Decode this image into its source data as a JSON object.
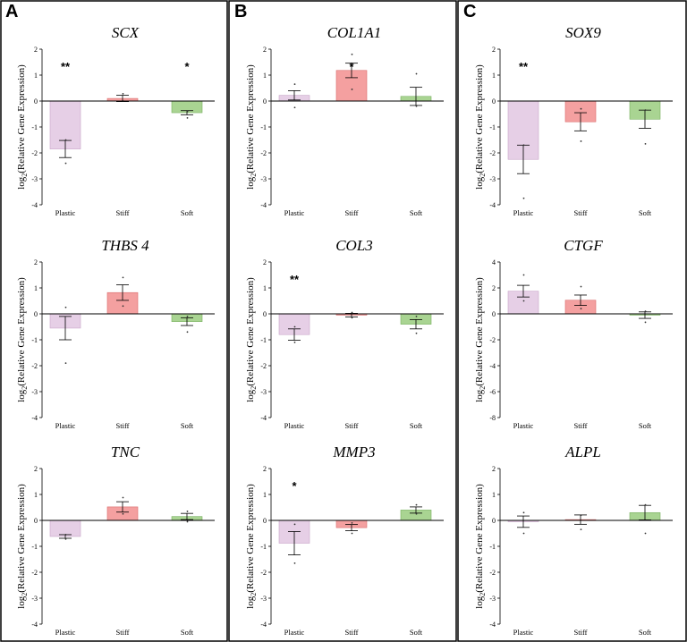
{
  "figure": {
    "panels": [
      {
        "letter": "A"
      },
      {
        "letter": "B"
      },
      {
        "letter": "C"
      }
    ],
    "colors": {
      "Plastic": "#e6cfe6",
      "Stiff": "#f4a0a0",
      "Soft": "#a9d492",
      "PlasticEdge": "#c9a6c9",
      "StiffEdge": "#d96a6a",
      "SoftEdge": "#78b060"
    }
  },
  "chart_data": [
    {
      "type": "bar",
      "panel": "A",
      "title": "SCX",
      "ylabel_base": "log",
      "ylabel_sub": "2",
      "ylabel_rest": "(Relative Gene Expression)",
      "categories": [
        "Plastic",
        "Stiff",
        "Soft"
      ],
      "values": [
        -1.85,
        0.1,
        -0.45
      ],
      "errors": [
        0.33,
        0.12,
        0.08
      ],
      "points": [
        [
          -1.5,
          -2.4
        ],
        [
          0.28,
          0.0
        ],
        [
          -0.4,
          -0.65
        ]
      ],
      "significance": [
        "**",
        "",
        "*"
      ],
      "ylim": [
        -4,
        2
      ],
      "yticks": [
        -4,
        -3,
        -2,
        -1,
        0,
        1,
        2
      ]
    },
    {
      "type": "bar",
      "panel": "A",
      "title": "THBS 4",
      "ylabel_base": "log",
      "ylabel_sub": "2",
      "ylabel_rest": "(Relative Gene Expression)",
      "categories": [
        "Plastic",
        "Stiff",
        "Soft"
      ],
      "values": [
        -0.55,
        0.82,
        -0.3
      ],
      "errors": [
        0.45,
        0.3,
        0.15
      ],
      "points": [
        [
          0.25,
          -1.9
        ],
        [
          1.4,
          0.3
        ],
        [
          -0.1,
          -0.7
        ]
      ],
      "significance": [
        "",
        "",
        ""
      ],
      "ylim": [
        -4,
        2
      ],
      "yticks": [
        -4,
        -3,
        -2,
        -1,
        0,
        1,
        2
      ]
    },
    {
      "type": "bar",
      "panel": "A",
      "title": "TNC",
      "ylabel_base": "log",
      "ylabel_sub": "2",
      "ylabel_rest": "(Relative Gene Expression)",
      "categories": [
        "Plastic",
        "Stiff",
        "Soft"
      ],
      "values": [
        -0.62,
        0.52,
        0.15
      ],
      "errors": [
        0.07,
        0.2,
        0.12
      ],
      "points": [
        [
          -0.55,
          -0.72
        ],
        [
          0.88,
          0.25
        ],
        [
          0.35,
          -0.05
        ]
      ],
      "significance": [
        "",
        "",
        ""
      ],
      "ylim": [
        -4,
        2
      ],
      "yticks": [
        -4,
        -3,
        -2,
        -1,
        0,
        1,
        2
      ]
    },
    {
      "type": "bar",
      "panel": "B",
      "title": "COL1A1",
      "ylabel_base": "log",
      "ylabel_sub": "2",
      "ylabel_rest": "(Relative Gene Expression)",
      "categories": [
        "Plastic",
        "Stiff",
        "Soft"
      ],
      "values": [
        0.22,
        1.18,
        0.18
      ],
      "errors": [
        0.18,
        0.28,
        0.35
      ],
      "points": [
        [
          0.65,
          -0.25
        ],
        [
          1.8,
          0.45
        ],
        [
          1.05,
          -0.2
        ]
      ],
      "significance": [
        "",
        "*",
        ""
      ],
      "ylim": [
        -4,
        2
      ],
      "yticks": [
        -4,
        -3,
        -2,
        -1,
        0,
        1,
        2
      ]
    },
    {
      "type": "bar",
      "panel": "B",
      "title": "COL3",
      "ylabel_base": "log",
      "ylabel_sub": "2",
      "ylabel_rest": "(Relative Gene Expression)",
      "categories": [
        "Plastic",
        "Stiff",
        "Soft"
      ],
      "values": [
        -0.8,
        -0.05,
        -0.4
      ],
      "errors": [
        0.22,
        0.07,
        0.18
      ],
      "points": [
        [
          -0.5,
          -1.1
        ],
        [
          0.05,
          -0.15
        ],
        [
          -0.1,
          -0.75
        ]
      ],
      "significance": [
        "**",
        "",
        ""
      ],
      "ylim": [
        -4,
        2
      ],
      "yticks": [
        -4,
        -3,
        -2,
        -1,
        0,
        1,
        2
      ]
    },
    {
      "type": "bar",
      "panel": "B",
      "title": "MMP3",
      "ylabel_base": "log",
      "ylabel_sub": "2",
      "ylabel_rest": "(Relative Gene Expression)",
      "categories": [
        "Plastic",
        "Stiff",
        "Soft"
      ],
      "values": [
        -0.88,
        -0.28,
        0.4
      ],
      "errors": [
        0.45,
        0.12,
        0.12
      ],
      "points": [
        [
          -0.15,
          -1.65
        ],
        [
          -0.1,
          -0.5
        ],
        [
          0.6,
          0.25
        ]
      ],
      "significance": [
        "*",
        "",
        ""
      ],
      "ylim": [
        -4,
        2
      ],
      "yticks": [
        -4,
        -3,
        -2,
        -1,
        0,
        1,
        2
      ]
    },
    {
      "type": "bar",
      "panel": "C",
      "title": "SOX9",
      "ylabel_base": "log",
      "ylabel_sub": "2",
      "ylabel_rest": "(Relative Gene Expression)",
      "categories": [
        "Plastic",
        "Stiff",
        "Soft"
      ],
      "values": [
        -2.25,
        -0.8,
        -0.7
      ],
      "errors": [
        0.55,
        0.35,
        0.35
      ],
      "points": [
        [
          -1.7,
          -3.75
        ],
        [
          -0.3,
          -1.55
        ],
        [
          -0.35,
          -1.65
        ]
      ],
      "significance": [
        "**",
        "",
        ""
      ],
      "ylim": [
        -4,
        2
      ],
      "yticks": [
        -4,
        -3,
        -2,
        -1,
        0,
        1,
        2
      ]
    },
    {
      "type": "bar",
      "panel": "C",
      "title": "CTGF",
      "ylabel_base": "log",
      "ylabel_sub": "2",
      "ylabel_rest": "(Relative Gene Expression)",
      "categories": [
        "Plastic",
        "Stiff",
        "Soft"
      ],
      "values": [
        1.75,
        1.05,
        -0.1
      ],
      "errors": [
        0.45,
        0.4,
        0.25
      ],
      "points": [
        [
          3.0,
          1.0
        ],
        [
          2.1,
          0.4
        ],
        [
          0.2,
          -0.65
        ]
      ],
      "significance": [
        "",
        "",
        ""
      ],
      "ylim": [
        -8,
        4
      ],
      "yticks": [
        -8,
        -6,
        -4,
        -2,
        0,
        2,
        4
      ]
    },
    {
      "type": "bar",
      "panel": "C",
      "title": "ALPL",
      "ylabel_base": "log",
      "ylabel_sub": "2",
      "ylabel_rest": "(Relative Gene Expression)",
      "categories": [
        "Plastic",
        "Stiff",
        "Soft"
      ],
      "values": [
        -0.05,
        0.03,
        0.3
      ],
      "errors": [
        0.22,
        0.18,
        0.28
      ],
      "points": [
        [
          0.3,
          -0.5
        ],
        [
          0.2,
          -0.35
        ],
        [
          0.6,
          -0.5
        ]
      ],
      "significance": [
        "",
        "",
        ""
      ],
      "ylim": [
        -4,
        2
      ],
      "yticks": [
        -4,
        -3,
        -2,
        -1,
        0,
        1,
        2
      ]
    }
  ]
}
